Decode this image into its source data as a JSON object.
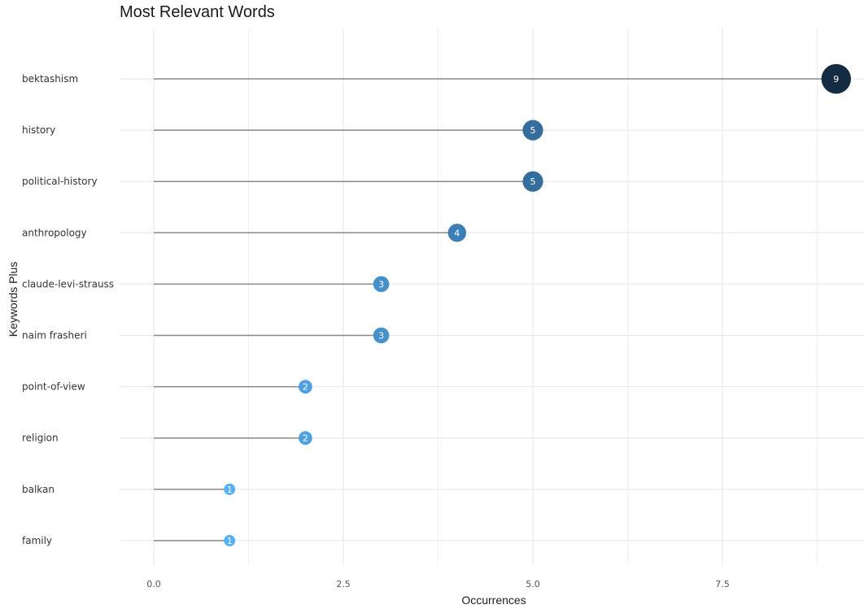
{
  "chart_data": {
    "type": "lollipop",
    "title": "Most Relevant Words",
    "xlabel": "Occurrences",
    "ylabel": "Keywords Plus",
    "xlim": [
      0,
      9
    ],
    "xticks": [
      "0.0",
      "2.5",
      "5.0",
      "7.5"
    ],
    "xtick_values": [
      0,
      2.5,
      5,
      7.5
    ],
    "categories": [
      "bektashism",
      "history",
      "political-history",
      "anthropology",
      "claude-levi-strauss",
      "naim frasheri",
      "point-of-view",
      "religion",
      "balkan",
      "family"
    ],
    "values": [
      9,
      5,
      5,
      4,
      3,
      3,
      2,
      2,
      1,
      1
    ],
    "grid": true,
    "colors": {
      "stem": "#888888",
      "low": "#56b1f7",
      "high": "#132b43"
    }
  }
}
